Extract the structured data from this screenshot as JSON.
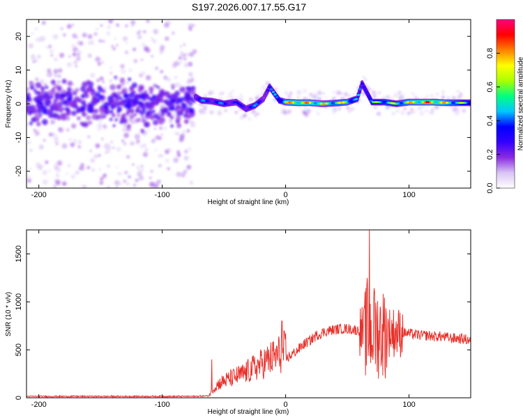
{
  "title": "S197.2026.007.17.55.G17",
  "chart_data": [
    {
      "type": "heatmap",
      "panel": "spectrogram",
      "xlabel": "Height of straight line (km)",
      "ylabel": "Frequency (Hz)",
      "xlim": [
        -210,
        150
      ],
      "ylim": [
        -25,
        25
      ],
      "xticks": [
        "-200",
        "-100",
        "0",
        "100"
      ],
      "yticks": [
        "20",
        "10",
        "0",
        "-10",
        "-20"
      ],
      "xtick_values": [
        -200,
        -100,
        0,
        100
      ],
      "ytick_values": [
        20,
        10,
        0,
        -10,
        -20
      ],
      "noise_region_km": [
        -210,
        -73
      ],
      "tracked_signal_start_km": -73,
      "ridge": [
        {
          "x": -73,
          "y": 2.0,
          "a": 0.4
        },
        {
          "x": -68,
          "y": 1.0,
          "a": 0.45
        },
        {
          "x": -60,
          "y": 0.8,
          "a": 0.4
        },
        {
          "x": -50,
          "y": 0.0,
          "a": 0.45
        },
        {
          "x": -40,
          "y": 0.5,
          "a": 0.35
        },
        {
          "x": -32,
          "y": -1.5,
          "a": 0.4
        },
        {
          "x": -25,
          "y": -0.5,
          "a": 0.45
        },
        {
          "x": -18,
          "y": 1.5,
          "a": 0.35
        },
        {
          "x": -13,
          "y": 5.0,
          "a": 0.4
        },
        {
          "x": -5,
          "y": 1.0,
          "a": 0.6
        },
        {
          "x": 0,
          "y": 0.5,
          "a": 0.8
        },
        {
          "x": 10,
          "y": 0.3,
          "a": 0.9
        },
        {
          "x": 20,
          "y": 0.3,
          "a": 0.85
        },
        {
          "x": 30,
          "y": 0.0,
          "a": 0.8
        },
        {
          "x": 40,
          "y": 0.2,
          "a": 0.75
        },
        {
          "x": 50,
          "y": 0.5,
          "a": 0.8
        },
        {
          "x": 58,
          "y": 1.5,
          "a": 0.5
        },
        {
          "x": 62,
          "y": 6.0,
          "a": 0.4
        },
        {
          "x": 70,
          "y": 0.5,
          "a": 0.6
        },
        {
          "x": 80,
          "y": 0.5,
          "a": 0.7
        },
        {
          "x": 90,
          "y": 0.0,
          "a": 0.7
        },
        {
          "x": 100,
          "y": 0.5,
          "a": 0.8
        },
        {
          "x": 110,
          "y": 0.5,
          "a": 0.9
        },
        {
          "x": 120,
          "y": 0.5,
          "a": 0.95
        },
        {
          "x": 130,
          "y": 0.3,
          "a": 0.8
        },
        {
          "x": 140,
          "y": 0.3,
          "a": 0.7
        },
        {
          "x": 150,
          "y": 0.3,
          "a": 0.6
        }
      ],
      "colorbar": {
        "label": "Normalized spectral amplitude",
        "range": [
          0,
          1
        ],
        "ticks": [
          "0.0",
          "0.2",
          "0.4",
          "0.6",
          "0.8"
        ],
        "tick_values": [
          0,
          0.2,
          0.4,
          0.6,
          0.8
        ],
        "colors": [
          "#ffffff",
          "#d9c4f5",
          "#8a2be2",
          "#3300ff",
          "#0000ff",
          "#00c8ff",
          "#00ff80",
          "#aaff00",
          "#ffff00",
          "#ff8000",
          "#ff0000",
          "#ff0080"
        ]
      }
    },
    {
      "type": "line",
      "panel": "snr",
      "xlabel": "Height of straight line (km)",
      "ylabel": "SNR (10 * v/v)",
      "xlim": [
        -210,
        150
      ],
      "ylim": [
        0,
        1750
      ],
      "xticks": [
        "-200",
        "-100",
        "0",
        "100"
      ],
      "yticks": [
        "1500",
        "1000",
        "500",
        "0"
      ],
      "xtick_values": [
        -200,
        -100,
        0,
        100
      ],
      "ytick_values": [
        1500,
        1000,
        500,
        0
      ],
      "color": "#e8302a",
      "series": [
        {
          "name": "SNR",
          "x": [
            -210,
            -180,
            -150,
            -120,
            -90,
            -75,
            -62,
            -60,
            -55,
            -50,
            -45,
            -40,
            -35,
            -30,
            -25,
            -20,
            -15,
            -10,
            -5,
            -2,
            0,
            5,
            10,
            15,
            20,
            25,
            30,
            35,
            40,
            45,
            50,
            55,
            60,
            65,
            68,
            70,
            72,
            75,
            80,
            85,
            90,
            95,
            100,
            105,
            110,
            115,
            120,
            125,
            130,
            135,
            140,
            145,
            150
          ],
          "values": [
            15,
            15,
            15,
            15,
            15,
            15,
            20,
            60,
            120,
            150,
            170,
            190,
            210,
            240,
            270,
            300,
            330,
            360,
            390,
            420,
            400,
            450,
            500,
            560,
            600,
            650,
            680,
            700,
            710,
            720,
            720,
            710,
            700,
            690,
            690,
            700,
            690,
            680,
            680,
            690,
            680,
            680,
            670,
            660,
            650,
            650,
            640,
            640,
            630,
            620,
            620,
            610,
            600
          ],
          "notable_peaks": [
            {
              "x": -60,
              "y": 400
            },
            {
              "x": -3,
              "y": 800
            },
            {
              "x": 68,
              "y": 1760
            },
            {
              "x": 66,
              "y": 1250
            },
            {
              "x": 72,
              "y": 1100
            }
          ]
        }
      ]
    }
  ]
}
